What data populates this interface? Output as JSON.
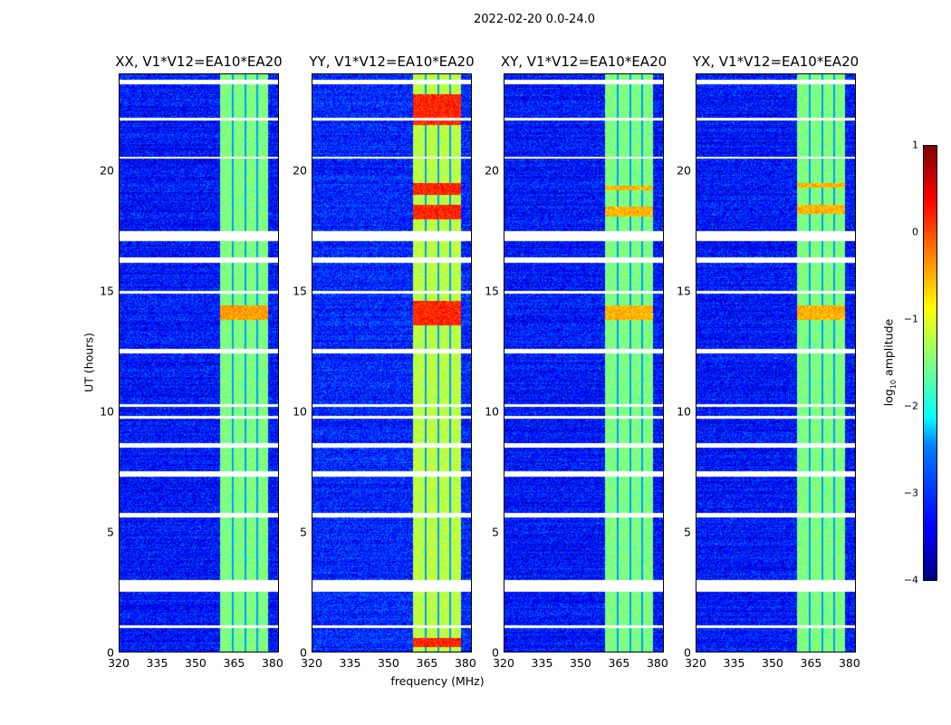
{
  "suptitle": "2022-02-20 0.0-24.0",
  "xlabel": "frequency (MHz)",
  "ylabel": "UT (hours)",
  "colorbar": {
    "label": "log10 amplitude",
    "label_main": "log",
    "label_sub": "10",
    "label_rest": " amplitude",
    "range": [
      -4,
      1
    ],
    "ticks": [
      "1",
      "0",
      "−1",
      "−2",
      "−3",
      "−4"
    ],
    "tick_values": [
      1,
      0,
      -1,
      -2,
      -3,
      -4
    ],
    "colormap": "jet"
  },
  "chart_data": [
    {
      "type": "heatmap",
      "title": "XX, V1*V12=EA10*EA20",
      "xlim": [
        320,
        382.5
      ],
      "ylim": [
        0,
        24
      ],
      "xticks": [
        "320",
        "335",
        "350",
        "365",
        "380"
      ],
      "yticks": [
        "0",
        "5",
        "10",
        "15",
        "20"
      ],
      "background_log_amp": -3.3,
      "band_mhz": [
        359.5,
        378.5
      ],
      "band_log_amp": -1.5,
      "hot_hours": [
        [
          13.8,
          14.4
        ]
      ],
      "hot_log_amp": -0.4
    },
    {
      "type": "heatmap",
      "title": "YY, V1*V12=EA10*EA20",
      "xlim": [
        320,
        382.5
      ],
      "ylim": [
        0,
        24
      ],
      "xticks": [
        "320",
        "335",
        "350",
        "365",
        "380"
      ],
      "yticks": [
        "0",
        "5",
        "10",
        "15",
        "20"
      ],
      "background_log_amp": -3.2,
      "band_mhz": [
        359.5,
        378.5
      ],
      "band_log_amp": -1.2,
      "hot_hours": [
        [
          13.6,
          14.6
        ],
        [
          18,
          18.6
        ],
        [
          19,
          19.5
        ],
        [
          21.9,
          23.2
        ],
        [
          0.2,
          0.6
        ]
      ],
      "hot_log_amp": 0.2
    },
    {
      "type": "heatmap",
      "title": "XY, V1*V12=EA10*EA20",
      "xlim": [
        320,
        382.5
      ],
      "ylim": [
        0,
        24
      ],
      "xticks": [
        "320",
        "335",
        "350",
        "365",
        "380"
      ],
      "yticks": [
        "0",
        "5",
        "10",
        "15",
        "20"
      ],
      "background_log_amp": -3.3,
      "band_mhz": [
        359.5,
        378.5
      ],
      "band_log_amp": -1.5,
      "hot_hours": [
        [
          13.8,
          14.4
        ],
        [
          18.1,
          18.5
        ],
        [
          19.2,
          19.4
        ]
      ],
      "hot_log_amp": -0.5
    },
    {
      "type": "heatmap",
      "title": "YX, V1*V12=EA10*EA20",
      "xlim": [
        320,
        382.5
      ],
      "ylim": [
        0,
        24
      ],
      "xticks": [
        "320",
        "335",
        "350",
        "365",
        "380"
      ],
      "yticks": [
        "0",
        "5",
        "10",
        "15",
        "20"
      ],
      "background_log_amp": -3.3,
      "band_mhz": [
        359.5,
        378.5
      ],
      "band_log_amp": -1.5,
      "hot_hours": [
        [
          13.8,
          14.4
        ],
        [
          18.2,
          18.6
        ],
        [
          19.3,
          19.5
        ]
      ],
      "hot_log_amp": -0.5
    }
  ],
  "flagged_hours": [
    [
      23.6,
      23.8
    ],
    [
      17.1,
      17.5
    ],
    [
      16.2,
      16.4
    ],
    [
      12.4,
      12.6
    ],
    [
      8.5,
      8.7
    ],
    [
      7.3,
      7.5
    ],
    [
      5.6,
      5.8
    ],
    [
      2.5,
      3.0
    ],
    [
      1.0,
      1.1
    ],
    [
      9.7,
      9.8
    ],
    [
      10.2,
      10.3
    ],
    [
      14.9,
      15.0
    ],
    [
      20.5,
      20.6
    ],
    [
      22.1,
      22.2
    ]
  ],
  "band_stripes_mhz": [
    364.5,
    369.5,
    374.2
  ]
}
